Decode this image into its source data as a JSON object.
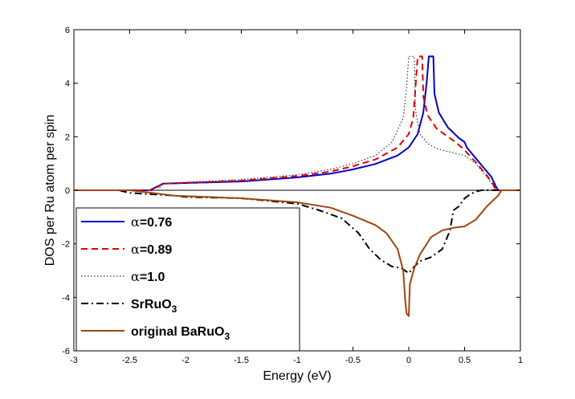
{
  "chart_data": {
    "type": "line",
    "title": "",
    "xlabel": "Energy (eV)",
    "ylabel": "DOS per Ru atom per spin",
    "xlim": [
      -3,
      1
    ],
    "ylim": [
      -6,
      6
    ],
    "xticks": [
      "-3",
      "-2.5",
      "-2",
      "-1.5",
      "-1",
      "-0.5",
      "0",
      "0.5",
      "1"
    ],
    "yticks": [
      "-6",
      "-4",
      "-2",
      "0",
      "2",
      "4",
      "6"
    ],
    "grid": false,
    "legend_position": "bottom-left",
    "series": [
      {
        "name": "α=0.76",
        "legend_prefix": "α",
        "legend_suffix": "=0.76",
        "color": "#0000cc",
        "style": "solid",
        "points": [
          [
            -3,
            0
          ],
          [
            -2.32,
            0
          ],
          [
            -2.2,
            0.25
          ],
          [
            -2.0,
            0.27
          ],
          [
            -1.5,
            0.33
          ],
          [
            -1.0,
            0.48
          ],
          [
            -0.7,
            0.62
          ],
          [
            -0.5,
            0.78
          ],
          [
            -0.3,
            0.98
          ],
          [
            -0.1,
            1.3
          ],
          [
            0.0,
            1.6
          ],
          [
            0.08,
            2.1
          ],
          [
            0.13,
            2.9
          ],
          [
            0.16,
            4.0
          ],
          [
            0.18,
            5.0
          ],
          [
            0.22,
            5.0
          ],
          [
            0.23,
            3.6
          ],
          [
            0.27,
            2.9
          ],
          [
            0.35,
            2.35
          ],
          [
            0.45,
            1.95
          ],
          [
            0.5,
            1.8
          ],
          [
            0.52,
            1.6
          ],
          [
            0.58,
            1.3
          ],
          [
            0.66,
            0.9
          ],
          [
            0.74,
            0.5
          ],
          [
            0.78,
            0.15
          ],
          [
            0.8,
            0
          ],
          [
            1,
            0
          ]
        ]
      },
      {
        "name": "α=0.89",
        "legend_prefix": "α",
        "legend_suffix": "=0.89",
        "color": "#e00000",
        "style": "dashed",
        "points": [
          [
            -3,
            0
          ],
          [
            -2.3,
            0
          ],
          [
            -2.2,
            0.25
          ],
          [
            -2.0,
            0.28
          ],
          [
            -1.5,
            0.36
          ],
          [
            -1.0,
            0.53
          ],
          [
            -0.7,
            0.7
          ],
          [
            -0.5,
            0.9
          ],
          [
            -0.3,
            1.15
          ],
          [
            -0.1,
            1.6
          ],
          [
            0.0,
            2.1
          ],
          [
            0.04,
            2.7
          ],
          [
            0.06,
            3.8
          ],
          [
            0.08,
            5.0
          ],
          [
            0.12,
            5.0
          ],
          [
            0.13,
            3.5
          ],
          [
            0.17,
            2.8
          ],
          [
            0.25,
            2.3
          ],
          [
            0.35,
            2.0
          ],
          [
            0.42,
            1.8
          ],
          [
            0.5,
            1.5
          ],
          [
            0.6,
            1.05
          ],
          [
            0.7,
            0.55
          ],
          [
            0.76,
            0.2
          ],
          [
            0.78,
            0
          ],
          [
            1,
            0
          ]
        ]
      },
      {
        "name": "α=1.0",
        "legend_prefix": "α",
        "legend_suffix": "=1.0",
        "color": "#333333",
        "style": "dotted",
        "points": [
          [
            -3,
            0
          ],
          [
            -2.25,
            0
          ],
          [
            -2.2,
            0.25
          ],
          [
            -2.0,
            0.3
          ],
          [
            -1.5,
            0.4
          ],
          [
            -1.0,
            0.58
          ],
          [
            -0.7,
            0.78
          ],
          [
            -0.5,
            1.0
          ],
          [
            -0.3,
            1.3
          ],
          [
            -0.15,
            1.8
          ],
          [
            -0.05,
            2.7
          ],
          [
            -0.02,
            3.8
          ],
          [
            0.0,
            5.0
          ],
          [
            0.05,
            5.0
          ],
          [
            0.06,
            3.0
          ],
          [
            0.1,
            2.1
          ],
          [
            0.17,
            1.75
          ],
          [
            0.25,
            1.55
          ],
          [
            0.4,
            1.4
          ],
          [
            0.5,
            1.3
          ],
          [
            0.6,
            1.0
          ],
          [
            0.7,
            0.5
          ],
          [
            0.75,
            0.2
          ],
          [
            0.78,
            0
          ],
          [
            1,
            0
          ]
        ]
      },
      {
        "name": "SrRuO3",
        "legend_prefix": "SrRuO",
        "legend_sub": "3",
        "color": "#000000",
        "style": "dashdot",
        "points": [
          [
            -3,
            0
          ],
          [
            -2.6,
            0
          ],
          [
            -2.5,
            -0.1
          ],
          [
            -2.3,
            -0.15
          ],
          [
            -2.1,
            -0.2
          ],
          [
            -2.0,
            -0.25
          ],
          [
            -1.5,
            -0.3
          ],
          [
            -1.0,
            -0.5
          ],
          [
            -0.8,
            -0.75
          ],
          [
            -0.6,
            -1.05
          ],
          [
            -0.45,
            -1.6
          ],
          [
            -0.35,
            -2.2
          ],
          [
            -0.25,
            -2.6
          ],
          [
            -0.15,
            -2.85
          ],
          [
            -0.07,
            -2.9
          ],
          [
            0.0,
            -3.1
          ],
          [
            0.05,
            -2.85
          ],
          [
            0.1,
            -2.65
          ],
          [
            0.2,
            -2.5
          ],
          [
            0.3,
            -2.2
          ],
          [
            0.37,
            -1.5
          ],
          [
            0.4,
            -0.75
          ],
          [
            0.45,
            -0.6
          ],
          [
            0.5,
            -0.3
          ],
          [
            0.55,
            -0.15
          ],
          [
            0.6,
            -0.05
          ],
          [
            0.65,
            0
          ],
          [
            1,
            0
          ]
        ]
      },
      {
        "name": "original BaRuO3",
        "legend_prefix": "original BaRuO",
        "legend_sub": "3",
        "color": "#a0460f",
        "style": "solid",
        "points": [
          [
            -3,
            0
          ],
          [
            -2.5,
            0
          ],
          [
            -2.3,
            -0.1
          ],
          [
            -2.1,
            -0.2
          ],
          [
            -1.5,
            -0.3
          ],
          [
            -1.0,
            -0.45
          ],
          [
            -0.7,
            -0.65
          ],
          [
            -0.5,
            -0.95
          ],
          [
            -0.3,
            -1.3
          ],
          [
            -0.2,
            -1.6
          ],
          [
            -0.1,
            -2.2
          ],
          [
            -0.05,
            -3.0
          ],
          [
            -0.03,
            -4.2
          ],
          [
            -0.02,
            -4.6
          ],
          [
            0.0,
            -4.7
          ],
          [
            0.01,
            -3.5
          ],
          [
            0.05,
            -2.9
          ],
          [
            0.1,
            -2.4
          ],
          [
            0.2,
            -1.75
          ],
          [
            0.3,
            -1.5
          ],
          [
            0.4,
            -1.4
          ],
          [
            0.5,
            -1.35
          ],
          [
            0.6,
            -1.1
          ],
          [
            0.7,
            -0.6
          ],
          [
            0.8,
            -0.2
          ],
          [
            0.83,
            0
          ],
          [
            1,
            0
          ]
        ]
      }
    ]
  }
}
